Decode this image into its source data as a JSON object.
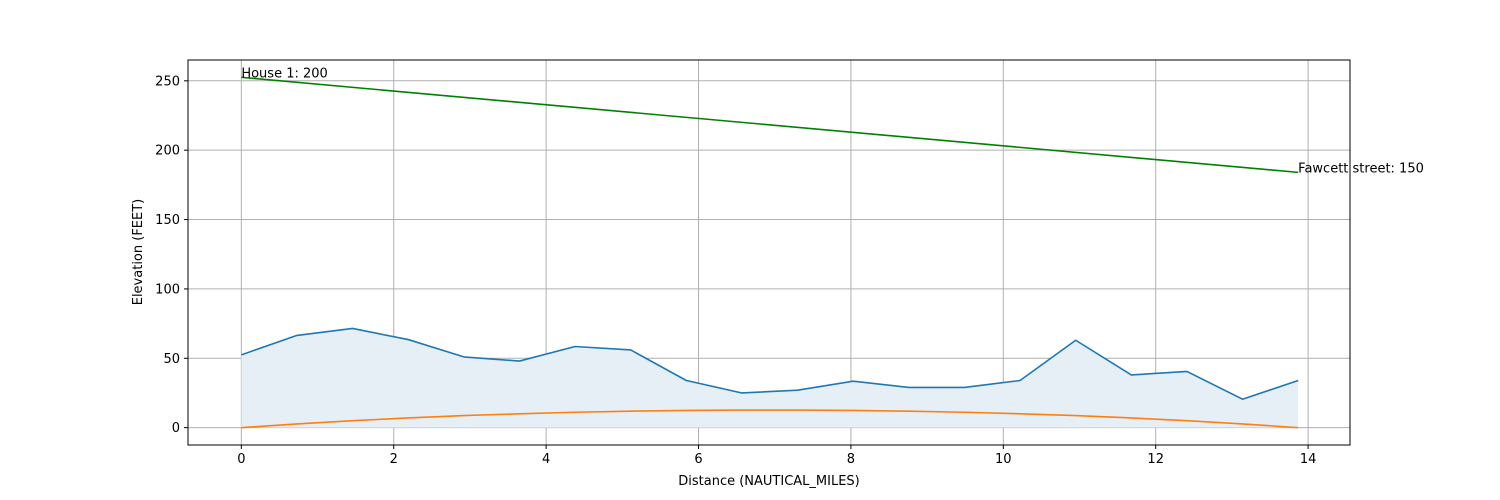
{
  "chart_data": {
    "type": "line",
    "xlabel": "Distance (NAUTICAL_MILES)",
    "ylabel": "Elevation (FEET)",
    "xlim": [
      -0.7,
      14.55
    ],
    "ylim": [
      -12.5,
      265
    ],
    "xticks": [
      0,
      2,
      4,
      6,
      8,
      10,
      12,
      14
    ],
    "yticks": [
      0,
      50,
      100,
      150,
      200,
      250
    ],
    "grid": true,
    "series": [
      {
        "color": "#1f77b4",
        "fill": "#e7eff6",
        "x": [
          0,
          0.73,
          1.46,
          2.19,
          2.92,
          3.65,
          4.38,
          5.11,
          5.84,
          6.57,
          7.3,
          8.03,
          8.76,
          9.49,
          10.22,
          10.95,
          11.68,
          12.41,
          13.14,
          13.87
        ],
        "y": [
          52.5,
          66.5,
          71.5,
          63.5,
          51,
          48,
          58.5,
          56,
          34,
          25,
          27,
          33.5,
          29,
          29,
          34,
          63,
          38,
          40.5,
          20.5,
          34
        ]
      },
      {
        "color": "#ff7f0e",
        "x": [
          0,
          0.73,
          1.46,
          2.19,
          2.92,
          3.65,
          4.38,
          5.11,
          5.84,
          6.57,
          7.3,
          8.03,
          8.76,
          9.49,
          10.22,
          10.95,
          11.68,
          12.41,
          13.14,
          13.87
        ],
        "y": [
          0,
          2.7,
          5,
          7,
          8.7,
          10,
          11.1,
          11.9,
          12.4,
          12.7,
          12.7,
          12.4,
          11.9,
          11.1,
          10,
          8.7,
          7,
          5,
          2.7,
          0
        ]
      },
      {
        "color": "#008000",
        "x": [
          0,
          13.87
        ],
        "y": [
          252.5,
          184
        ]
      }
    ],
    "annotations": [
      {
        "text": "House 1: 200",
        "x": 0,
        "y": 252.5
      },
      {
        "text": "Fawcett street: 150",
        "x": 13.87,
        "y": 184
      }
    ]
  }
}
